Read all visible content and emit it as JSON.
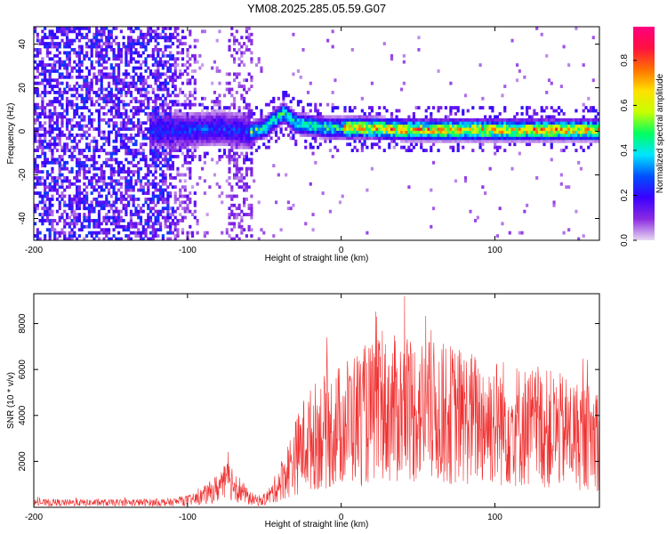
{
  "title": "YM08.2025.285.05.59.G07",
  "chart_data": [
    {
      "type": "heatmap",
      "title": "YM08.2025.285.05.59.G07",
      "xlabel": "Height of straight line (km)",
      "ylabel": "Frequency (Hz)",
      "xlim": [
        -200,
        168
      ],
      "ylim": [
        -50,
        48
      ],
      "xticks": [
        -200,
        -100,
        0,
        100
      ],
      "yticks": [
        -40,
        -20,
        0,
        20,
        40
      ],
      "xtick_labels": [
        "-200",
        "-100",
        "0",
        "100"
      ],
      "ytick_labels": [
        "-40",
        "-20",
        "0",
        "20",
        "40"
      ],
      "colorbar": {
        "label": "Normalized spectral amplitude",
        "range": [
          0,
          0.95
        ],
        "ticks": [
          0,
          0.2,
          0.4,
          0.6,
          0.8
        ],
        "tick_labels": [
          "0.0",
          "0.2",
          "0.4",
          "0.6",
          "0.8"
        ],
        "colors": [
          "#e8d8f0",
          "#8a2be2",
          "#3a00ff",
          "#0050ff",
          "#00e5ff",
          "#00ff60",
          "#c8ff00",
          "#ffe000",
          "#ff7000",
          "#ff1040",
          "#ff007f"
        ]
      },
      "ridge": {
        "x": [
          -120,
          -100,
          -80,
          -60,
          -50,
          -42,
          -38,
          -30,
          -20,
          -10,
          0,
          20,
          40,
          60,
          80,
          100,
          120,
          140,
          168
        ],
        "y": [
          0,
          0,
          1,
          -1,
          1,
          6,
          8,
          3,
          2,
          1,
          1,
          1,
          0,
          0,
          0,
          0,
          0,
          0,
          0
        ]
      },
      "ridge_peak_amplitude": 0.9
    },
    {
      "type": "line",
      "xlabel": "Height of straight line (km)",
      "ylabel": "SNR (10 * v/v)",
      "xlim": [
        -200,
        168
      ],
      "ylim": [
        0,
        9300
      ],
      "xticks": [
        -200,
        -100,
        0,
        100
      ],
      "yticks": [
        2000,
        4000,
        6000,
        8000
      ],
      "xtick_labels": [
        "-200",
        "-100",
        "0",
        "100"
      ],
      "ytick_labels": [
        "2000",
        "4000",
        "6000",
        "8000"
      ],
      "line_color": "#f03030",
      "envelope": {
        "x": [
          -200,
          -150,
          -110,
          -95,
          -85,
          -72,
          -68,
          -60,
          -52,
          -45,
          -35,
          -25,
          -15,
          -5,
          5,
          15,
          30,
          45,
          60,
          75,
          90,
          105,
          120,
          135,
          150,
          168
        ],
        "y": [
          200,
          200,
          220,
          350,
          650,
          1200,
          900,
          400,
          250,
          600,
          1600,
          2700,
          3200,
          3400,
          3800,
          4000,
          4200,
          4300,
          4100,
          4000,
          3800,
          3700,
          3500,
          3400,
          3200,
          3000
        ]
      },
      "noise_fraction": 0.55,
      "max_value": 9200
    }
  ]
}
